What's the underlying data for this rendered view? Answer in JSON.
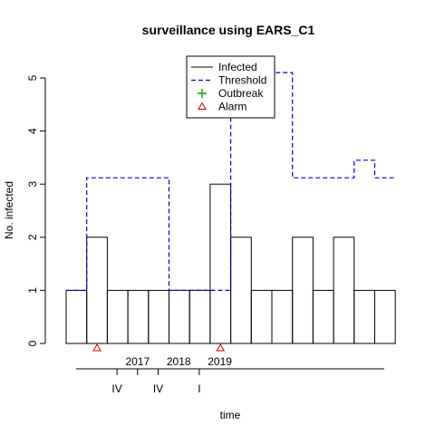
{
  "chart_data": {
    "type": "bar",
    "title": "surveillance using EARS_C1",
    "xlabel": "time",
    "ylabel": "No. infected",
    "ylim": [
      0,
      5
    ],
    "y_ticks": [
      "0",
      "1",
      "2",
      "3",
      "4",
      "5"
    ],
    "grid": false,
    "legend_position": "top-center",
    "counts": [
      1,
      2,
      1,
      1,
      1,
      1,
      1,
      3,
      2,
      1,
      1,
      2,
      1,
      2,
      1,
      1
    ],
    "threshold": [
      1,
      3.12,
      3.12,
      3.12,
      3.12,
      1,
      1,
      1,
      4.7,
      5.1,
      5.1,
      3.12,
      3.12,
      3.12,
      3.45,
      3.12
    ],
    "alarm_indices": [
      1,
      7
    ],
    "legend": [
      {
        "label": "Infected",
        "style": "line",
        "color": "#000000"
      },
      {
        "label": "Threshold",
        "style": "dashed",
        "color": "#0000cc"
      },
      {
        "label": "Outbreak",
        "style": "plus",
        "color": "#00aa00"
      },
      {
        "label": "Alarm",
        "style": "triangle",
        "color": "#cc0000"
      }
    ],
    "axis_major": [
      {
        "label": "2017",
        "index": 4
      },
      {
        "label": "2018",
        "index": 6
      },
      {
        "label": "2019",
        "index": 8
      }
    ],
    "axis_minor": [
      {
        "label": "IV",
        "index": 3
      },
      {
        "label": "",
        "index": 4
      },
      {
        "label": "IV",
        "index": 5
      },
      {
        "label": "I",
        "index": 7
      }
    ]
  }
}
